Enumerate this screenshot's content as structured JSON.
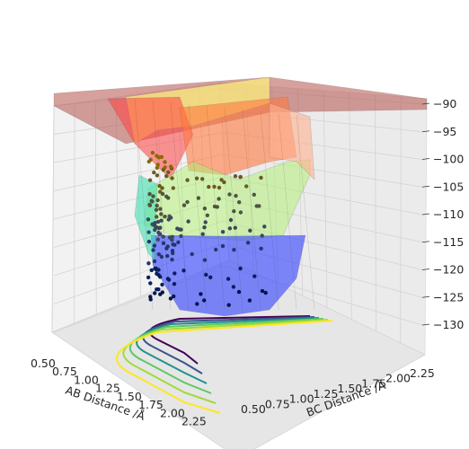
{
  "chart_data": {
    "type": "surface3d",
    "title": "",
    "xlabel": "AB Distance /Å",
    "ylabel": "BC Distance /Å",
    "zlabel": "",
    "xlim": [
      0.5,
      2.5
    ],
    "ylim": [
      0.5,
      2.5
    ],
    "zlim": [
      -132,
      -90
    ],
    "x_ticks": [
      "0.50",
      "0.75",
      "1.00",
      "1.25",
      "1.50",
      "1.75",
      "2.00",
      "2.25"
    ],
    "y_ticks": [
      "0.50",
      "0.75",
      "1.00",
      "1.25",
      "1.50",
      "1.75",
      "2.00",
      "2.25"
    ],
    "z_ticks": [
      "−90",
      "−95",
      "−100",
      "−105",
      "−110",
      "−115",
      "−120",
      "−125",
      "−130"
    ],
    "z_tick_values": [
      -90,
      -95,
      -100,
      -105,
      -110,
      -115,
      -120,
      -125,
      -130
    ],
    "grid": true,
    "colormap": "jet",
    "surface_alpha": 0.45,
    "floor_contours": {
      "levels": [
        -130,
        -127,
        -124,
        -121,
        -118,
        -115
      ],
      "colors": [
        "#440154",
        "#3b528b",
        "#21918c",
        "#5ec962",
        "#a0da39",
        "#fde725"
      ]
    },
    "trajectory": {
      "colormap": "cividis",
      "description_points": [
        [
          0.74,
          2.25,
          -98
        ],
        [
          0.74,
          2.1,
          -103
        ],
        [
          0.74,
          1.95,
          -108
        ],
        [
          0.74,
          1.8,
          -113
        ],
        [
          0.74,
          1.65,
          -118
        ],
        [
          0.74,
          1.5,
          -122
        ],
        [
          0.74,
          1.35,
          -125
        ],
        [
          0.75,
          1.2,
          -126
        ],
        [
          0.78,
          1.05,
          -127
        ],
        [
          0.8,
          0.95,
          -127
        ],
        [
          0.9,
          0.85,
          -126
        ],
        [
          1.05,
          0.8,
          -124
        ],
        [
          1.25,
          0.78,
          -123
        ],
        [
          1.45,
          0.76,
          -125
        ],
        [
          1.65,
          0.75,
          -127
        ],
        [
          1.85,
          0.75,
          -128
        ]
      ]
    }
  }
}
